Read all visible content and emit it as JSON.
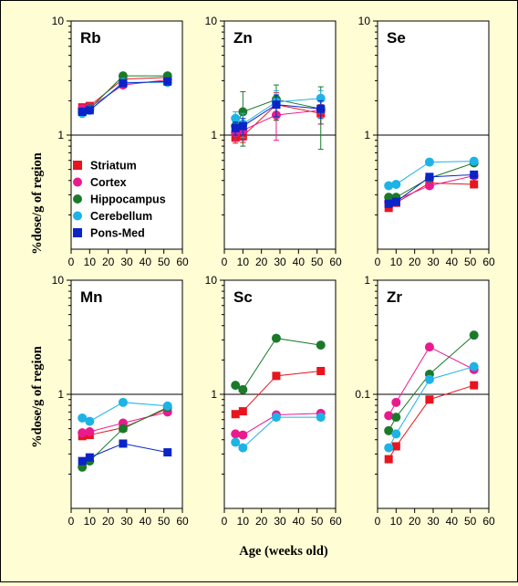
{
  "labels": {
    "ylabel": "%dose/g of region",
    "xlabel": "Age (weeks old)"
  },
  "legend": [
    {
      "name": "Striatum",
      "color": "#e8141e",
      "marker": "square"
    },
    {
      "name": "Cortex",
      "color": "#ea1a8e",
      "marker": "circle"
    },
    {
      "name": "Hippocampus",
      "color": "#1b7a2a",
      "marker": "circle"
    },
    {
      "name": "Cerebellum",
      "color": "#1eb3e6",
      "marker": "circle"
    },
    {
      "name": "Pons-Med",
      "color": "#0a24c8",
      "marker": "square"
    }
  ],
  "chart_data": [
    {
      "type": "line",
      "title": "Rb",
      "yscale": "log",
      "ylim": [
        0.1,
        10
      ],
      "xlim": [
        0,
        60
      ],
      "yticks": [
        "10",
        "1"
      ],
      "xticks": [
        "0",
        "10",
        "20",
        "30",
        "40",
        "50",
        "60"
      ],
      "series": [
        {
          "name": "Striatum",
          "x": [
            6,
            10,
            28,
            52
          ],
          "y": [
            1.75,
            1.8,
            3.1,
            3.2
          ]
        },
        {
          "name": "Cortex",
          "x": [
            6,
            10,
            28,
            52
          ],
          "y": [
            1.7,
            1.75,
            2.75,
            3.05
          ]
        },
        {
          "name": "Hippocampus",
          "x": [
            6,
            10,
            28,
            52
          ],
          "y": [
            1.6,
            1.7,
            3.3,
            3.3
          ]
        },
        {
          "name": "Cerebellum",
          "x": [
            6,
            10,
            28,
            52
          ],
          "y": [
            1.55,
            1.65,
            2.9,
            2.9
          ]
        },
        {
          "name": "Pons-Med",
          "x": [
            6,
            10,
            28,
            52
          ],
          "y": [
            1.6,
            1.65,
            2.85,
            2.95
          ]
        }
      ]
    },
    {
      "type": "line",
      "title": "Zn",
      "yscale": "log",
      "ylim": [
        0.1,
        10
      ],
      "xlim": [
        0,
        60
      ],
      "yticks": [
        "10",
        "1"
      ],
      "xticks": [
        "0",
        "10",
        "20",
        "30",
        "40",
        "50",
        "60"
      ],
      "series": [
        {
          "name": "Striatum",
          "x": [
            6,
            10,
            28,
            52
          ],
          "y": [
            0.95,
            0.98,
            1.85,
            1.55
          ],
          "err": [
            0.1,
            0.12,
            0.5,
            0.3
          ]
        },
        {
          "name": "Cortex",
          "x": [
            6,
            10,
            28,
            52
          ],
          "y": [
            1.05,
            1.1,
            1.5,
            1.65
          ],
          "err": [
            0.15,
            0.2,
            0.6,
            0.4
          ]
        },
        {
          "name": "Hippocampus",
          "x": [
            6,
            10,
            28,
            52
          ],
          "y": [
            1.2,
            1.6,
            2.05,
            1.7
          ],
          "err": [
            0.25,
            0.8,
            0.7,
            0.95
          ]
        },
        {
          "name": "Cerebellum",
          "x": [
            6,
            10,
            28,
            52
          ],
          "y": [
            1.4,
            1.25,
            1.95,
            2.1
          ],
          "err": [
            0.2,
            0.3,
            0.5,
            0.35
          ]
        },
        {
          "name": "Pons-Med",
          "x": [
            6,
            10,
            28,
            52
          ],
          "y": [
            1.15,
            1.2,
            1.85,
            1.7
          ],
          "err": [
            0.15,
            0.2,
            0.4,
            0.3
          ]
        }
      ]
    },
    {
      "type": "line",
      "title": "Se",
      "yscale": "log",
      "ylim": [
        0.1,
        10
      ],
      "xlim": [
        0,
        60
      ],
      "yticks": [
        "10",
        "1"
      ],
      "xticks": [
        "0",
        "10",
        "20",
        "30",
        "40",
        "50",
        "60"
      ],
      "series": [
        {
          "name": "Striatum",
          "x": [
            6,
            10,
            28,
            52
          ],
          "y": [
            0.23,
            0.255,
            0.38,
            0.37
          ]
        },
        {
          "name": "Cortex",
          "x": [
            6,
            10,
            28,
            52
          ],
          "y": [
            0.26,
            0.27,
            0.36,
            0.44
          ]
        },
        {
          "name": "Hippocampus",
          "x": [
            6,
            10,
            28,
            52
          ],
          "y": [
            0.285,
            0.285,
            0.42,
            0.57
          ]
        },
        {
          "name": "Cerebellum",
          "x": [
            6,
            10,
            28,
            52
          ],
          "y": [
            0.36,
            0.37,
            0.58,
            0.59
          ]
        },
        {
          "name": "Pons-Med",
          "x": [
            6,
            10,
            28,
            52
          ],
          "y": [
            0.25,
            0.26,
            0.43,
            0.45
          ]
        }
      ]
    },
    {
      "type": "line",
      "title": "Mn",
      "yscale": "log",
      "ylim": [
        0.1,
        10
      ],
      "xlim": [
        0,
        60
      ],
      "yticks": [
        "10",
        "1"
      ],
      "xticks": [
        "0",
        "10",
        "20",
        "30",
        "40",
        "50",
        "60"
      ],
      "series": [
        {
          "name": "Striatum",
          "x": [
            6,
            10,
            28,
            52
          ],
          "y": [
            0.43,
            0.44,
            0.51,
            0.75
          ]
        },
        {
          "name": "Cortex",
          "x": [
            6,
            10,
            28,
            52
          ],
          "y": [
            0.46,
            0.47,
            0.56,
            0.7
          ]
        },
        {
          "name": "Hippocampus",
          "x": [
            6,
            10,
            28,
            52
          ],
          "y": [
            0.23,
            0.26,
            0.5,
            0.77
          ]
        },
        {
          "name": "Cerebellum",
          "x": [
            6,
            10,
            28,
            52
          ],
          "y": [
            0.62,
            0.58,
            0.85,
            0.79
          ]
        },
        {
          "name": "Pons-Med",
          "x": [
            6,
            10,
            28,
            52
          ],
          "y": [
            0.26,
            0.28,
            0.37,
            0.31
          ]
        }
      ]
    },
    {
      "type": "line",
      "title": "Sc",
      "yscale": "log",
      "ylim": [
        0.1,
        10
      ],
      "xlim": [
        0,
        60
      ],
      "yticks": [
        "10",
        "1"
      ],
      "xticks": [
        "0",
        "10",
        "20",
        "30",
        "40",
        "50",
        "60"
      ],
      "series": [
        {
          "name": "Striatum",
          "x": [
            6,
            10,
            28,
            52
          ],
          "y": [
            0.67,
            0.71,
            1.45,
            1.6
          ]
        },
        {
          "name": "Cortex",
          "x": [
            6,
            10,
            28,
            52
          ],
          "y": [
            0.45,
            0.44,
            0.66,
            0.68
          ]
        },
        {
          "name": "Hippocampus",
          "x": [
            6,
            10,
            28,
            52
          ],
          "y": [
            1.2,
            1.1,
            3.1,
            2.7
          ]
        },
        {
          "name": "Cerebellum",
          "x": [
            6,
            10,
            28,
            52
          ],
          "y": [
            0.38,
            0.34,
            0.63,
            0.63
          ]
        }
      ]
    },
    {
      "type": "line",
      "title": "Zr",
      "yscale": "log",
      "ylim": [
        0.01,
        1
      ],
      "xlim": [
        0,
        60
      ],
      "yticks": [
        "1",
        "0.1"
      ],
      "xticks": [
        "0",
        "10",
        "20",
        "30",
        "40",
        "50",
        "60"
      ],
      "series": [
        {
          "name": "Striatum",
          "x": [
            6,
            10,
            28,
            52
          ],
          "y": [
            0.027,
            0.035,
            0.09,
            0.12
          ]
        },
        {
          "name": "Cortex",
          "x": [
            6,
            10,
            28,
            52
          ],
          "y": [
            0.065,
            0.085,
            0.26,
            0.165
          ]
        },
        {
          "name": "Hippocampus",
          "x": [
            6,
            10,
            28,
            52
          ],
          "y": [
            0.048,
            0.063,
            0.15,
            0.33
          ]
        },
        {
          "name": "Cerebellum",
          "x": [
            6,
            10,
            28,
            52
          ],
          "y": [
            0.034,
            0.045,
            0.135,
            0.175
          ]
        }
      ]
    }
  ]
}
